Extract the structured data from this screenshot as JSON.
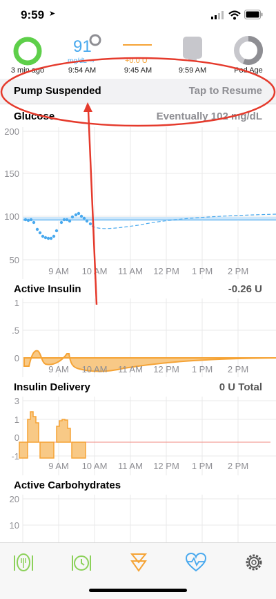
{
  "status_bar": {
    "time": "9:59"
  },
  "hud": {
    "loop_label": "3 min ago",
    "glucose_value": "91",
    "glucose_unit": "mg/dL →",
    "glucose_time": "9:54 AM",
    "temp_basal": "+0.0 U",
    "temp_basal_time": "9:45 AM",
    "reservoir_time": "9:59 AM",
    "pod_label": "Pod Age"
  },
  "banner": {
    "title": "Pump Suspended",
    "action": "Tap to Resume"
  },
  "charts": {
    "glucose": {
      "title": "Glucose",
      "value": "Eventually 102 mg/dL",
      "yticks": [
        "200",
        "150",
        "100",
        "50"
      ],
      "xticks": [
        "9 AM",
        "10 AM",
        "11 AM",
        "12 PM",
        "1 PM",
        "2 PM"
      ]
    },
    "insulin": {
      "title": "Active Insulin",
      "value": "-0.26 U",
      "yticks": [
        "1",
        ".5",
        "0"
      ],
      "xticks": [
        "9 AM",
        "10 AM",
        "11 AM",
        "12 PM",
        "1 PM",
        "2 PM"
      ]
    },
    "delivery": {
      "title": "Insulin Delivery",
      "value": "0 U Total",
      "yticks": [
        "3",
        "1",
        "0",
        "-1"
      ],
      "xticks": [
        "9 AM",
        "10 AM",
        "11 AM",
        "12 PM",
        "1 PM",
        "2 PM"
      ]
    },
    "carbs": {
      "title": "Active Carbohydrates",
      "yticks": [
        "20",
        "10"
      ]
    }
  },
  "colors": {
    "loop_green": "#5ecf4a",
    "glucose_blue": "#49a9ee",
    "insulin_orange": "#f5a335",
    "carb_green": "#8cd15a",
    "annotation_red": "#e53a2c",
    "grid": "#e8e8ea",
    "text_gray": "#8e8e93"
  },
  "tabs": [
    {
      "icon": "carb-entry-icon"
    },
    {
      "icon": "meal-bolus-icon"
    },
    {
      "icon": "bolus-icon"
    },
    {
      "icon": "health-heart-icon"
    },
    {
      "icon": "settings-gear-icon"
    }
  ]
}
